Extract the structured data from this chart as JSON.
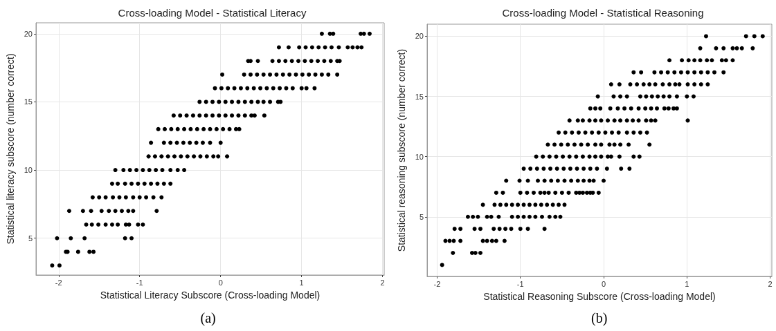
{
  "chart_data": [
    {
      "type": "scatter",
      "title": "Cross-loading Model - Statistical Literacy",
      "xlabel": "Statistical Literacy Subscore (Cross-loading Model)",
      "ylabel": "Statistical literacy subscore (number correct)",
      "annotations": [
        "(a)"
      ],
      "xlim": [
        -2.28,
        2.02
      ],
      "ylim": [
        2.3,
        20.8
      ],
      "xticks": [
        -2,
        -1,
        0,
        1,
        2
      ],
      "yticks": [
        5,
        10,
        15,
        20
      ],
      "grid": true,
      "marker": "circle",
      "series": [
        {
          "color": "#000000",
          "x": [
            -2.08,
            -1.99,
            -1.91,
            -1.89,
            -1.76,
            -1.62,
            -1.57,
            -2.02,
            -1.85,
            -1.68,
            -1.18,
            -1.1,
            -1.66,
            -1.59,
            -1.51,
            -1.42,
            -1.34,
            -1.27,
            -1.17,
            -1.13,
            -1.02,
            -0.96,
            -1.87,
            -1.7,
            -1.6,
            -1.47,
            -1.38,
            -1.3,
            -1.22,
            -1.14,
            -1.08,
            -0.79,
            -1.58,
            -1.5,
            -1.42,
            -1.33,
            -1.25,
            -1.17,
            -1.08,
            -1.0,
            -0.92,
            -0.83,
            -0.73,
            -1.34,
            -1.27,
            -1.18,
            -1.1,
            -1.02,
            -0.94,
            -0.86,
            -0.78,
            -0.7,
            -0.62,
            -1.3,
            -1.2,
            -1.12,
            -1.04,
            -0.96,
            -0.88,
            -0.8,
            -0.72,
            -0.62,
            -0.53,
            -0.45,
            -0.89,
            -0.81,
            -0.73,
            -0.65,
            -0.57,
            -0.49,
            -0.41,
            -0.33,
            -0.25,
            -0.17,
            -0.09,
            -0.03,
            0.08,
            -0.86,
            -0.7,
            -0.62,
            -0.54,
            -0.46,
            -0.38,
            -0.3,
            -0.22,
            -0.13,
            0.0,
            -0.77,
            -0.69,
            -0.61,
            -0.53,
            -0.45,
            -0.37,
            -0.29,
            -0.21,
            -0.13,
            -0.05,
            0.03,
            0.11,
            0.19,
            0.23,
            -0.58,
            -0.5,
            -0.42,
            -0.34,
            -0.26,
            -0.18,
            -0.1,
            -0.02,
            0.06,
            0.14,
            0.22,
            0.3,
            0.38,
            0.42,
            0.54,
            -0.26,
            -0.18,
            -0.1,
            -0.02,
            0.06,
            0.14,
            0.22,
            0.3,
            0.38,
            0.46,
            0.53,
            0.61,
            0.71,
            0.74,
            -0.07,
            0.01,
            0.09,
            0.17,
            0.25,
            0.33,
            0.41,
            0.49,
            0.57,
            0.65,
            0.73,
            0.81,
            0.89,
            1.0,
            1.06,
            1.16,
            0.02,
            0.29,
            0.37,
            0.45,
            0.53,
            0.61,
            0.69,
            0.77,
            0.85,
            0.93,
            1.01,
            1.09,
            1.17,
            1.25,
            1.33,
            1.44,
            0.34,
            0.37,
            0.46,
            0.64,
            0.72,
            0.8,
            0.88,
            0.96,
            1.04,
            1.12,
            1.2,
            1.28,
            1.36,
            1.44,
            1.47,
            0.72,
            0.84,
            0.97,
            1.05,
            1.13,
            1.21,
            1.29,
            1.37,
            1.46,
            1.57,
            1.63,
            1.69,
            1.74,
            1.25,
            1.35,
            1.39,
            1.73,
            1.77,
            1.84
          ],
          "values": [
            3,
            3,
            4,
            4,
            4,
            4,
            4,
            5,
            5,
            5,
            5,
            5,
            6,
            6,
            6,
            6,
            6,
            6,
            6,
            6,
            6,
            6,
            7,
            7,
            7,
            7,
            7,
            7,
            7,
            7,
            7,
            7,
            8,
            8,
            8,
            8,
            8,
            8,
            8,
            8,
            8,
            8,
            8,
            9,
            9,
            9,
            9,
            9,
            9,
            9,
            9,
            9,
            9,
            10,
            10,
            10,
            10,
            10,
            10,
            10,
            10,
            10,
            10,
            10,
            11,
            11,
            11,
            11,
            11,
            11,
            11,
            11,
            11,
            11,
            11,
            11,
            11,
            12,
            12,
            12,
            12,
            12,
            12,
            12,
            12,
            12,
            12,
            13,
            13,
            13,
            13,
            13,
            13,
            13,
            13,
            13,
            13,
            13,
            13,
            13,
            13,
            14,
            14,
            14,
            14,
            14,
            14,
            14,
            14,
            14,
            14,
            14,
            14,
            14,
            14,
            14,
            15,
            15,
            15,
            15,
            15,
            15,
            15,
            15,
            15,
            15,
            15,
            15,
            15,
            15,
            16,
            16,
            16,
            16,
            16,
            16,
            16,
            16,
            16,
            16,
            16,
            16,
            16,
            16,
            16,
            16,
            17,
            17,
            17,
            17,
            17,
            17,
            17,
            17,
            17,
            17,
            17,
            17,
            17,
            17,
            17,
            17,
            18,
            18,
            18,
            18,
            18,
            18,
            18,
            18,
            18,
            18,
            18,
            18,
            18,
            18,
            18,
            19,
            19,
            19,
            19,
            19,
            19,
            19,
            19,
            19,
            19,
            19,
            19,
            19,
            20,
            20,
            20,
            20,
            20,
            20
          ]
        }
      ]
    },
    {
      "type": "scatter",
      "title": "Cross-loading Model - Statistical Reasoning",
      "xlabel": "Statistical Reasoning Subscore (Cross-loading Model)",
      "ylabel": "Statistical reasoning subscore (number correct)",
      "annotations": [
        "(b)"
      ],
      "xlim": [
        -2.12,
        2.02
      ],
      "ylim": [
        0.05,
        21
      ],
      "xticks": [
        -2,
        -1,
        0,
        1,
        2
      ],
      "yticks": [
        5,
        10,
        15,
        20
      ],
      "grid": true,
      "marker": "circle",
      "series": [
        {
          "color": "#000000",
          "x": [
            -1.94,
            -1.81,
            -1.58,
            -1.54,
            -1.48,
            -1.9,
            -1.85,
            -1.8,
            -1.72,
            -1.45,
            -1.4,
            -1.34,
            -1.29,
            -1.19,
            -1.79,
            -1.72,
            -1.55,
            -1.48,
            -1.32,
            -1.25,
            -1.18,
            -1.11,
            -1.0,
            -0.91,
            -0.71,
            -1.63,
            -1.57,
            -1.51,
            -1.4,
            -1.35,
            -1.26,
            -1.1,
            -1.03,
            -0.96,
            -0.89,
            -0.82,
            -0.74,
            -0.65,
            -0.58,
            -0.52,
            -1.45,
            -1.31,
            -1.24,
            -1.17,
            -1.1,
            -1.03,
            -0.96,
            -0.89,
            -0.82,
            -0.75,
            -0.68,
            -0.61,
            -0.54,
            -0.47,
            -1.29,
            -1.21,
            -1.0,
            -0.92,
            -0.84,
            -0.76,
            -0.71,
            -0.66,
            -0.58,
            -0.5,
            -0.42,
            -0.33,
            -0.29,
            -0.25,
            -0.2,
            -0.16,
            -0.13,
            -0.06,
            -1.17,
            -1.01,
            -0.91,
            -0.79,
            -0.71,
            -0.63,
            -0.55,
            -0.47,
            -0.39,
            -0.31,
            -0.24,
            -0.17,
            -0.12,
            0.0,
            -0.96,
            -0.88,
            -0.8,
            -0.72,
            -0.64,
            -0.56,
            -0.48,
            -0.4,
            -0.32,
            -0.24,
            -0.16,
            -0.08,
            0.04,
            0.21,
            0.31,
            -0.81,
            -0.73,
            -0.65,
            -0.57,
            -0.49,
            -0.41,
            -0.33,
            -0.25,
            -0.17,
            -0.1,
            -0.03,
            0.05,
            0.09,
            0.19,
            0.36,
            0.43,
            -0.67,
            -0.59,
            -0.51,
            -0.43,
            -0.35,
            -0.27,
            -0.19,
            -0.1,
            -0.03,
            0.07,
            0.13,
            0.2,
            0.3,
            0.55,
            -0.54,
            -0.46,
            -0.38,
            -0.3,
            -0.22,
            -0.14,
            -0.06,
            0.02,
            0.1,
            0.18,
            0.28,
            0.36,
            0.44,
            0.52,
            -0.41,
            -0.31,
            -0.25,
            -0.17,
            -0.1,
            -0.03,
            0.05,
            0.13,
            0.2,
            0.28,
            0.35,
            0.42,
            0.51,
            0.57,
            0.62,
            1.01,
            -0.16,
            -0.1,
            -0.04,
            0.08,
            0.17,
            0.25,
            0.33,
            0.42,
            0.5,
            0.57,
            0.64,
            0.73,
            0.78,
            0.84,
            0.88,
            -0.07,
            0.12,
            0.2,
            0.28,
            0.44,
            0.51,
            0.58,
            0.65,
            0.72,
            0.79,
            0.88,
            1.0,
            1.08,
            0.09,
            0.19,
            0.32,
            0.4,
            0.48,
            0.55,
            0.62,
            0.71,
            0.79,
            0.86,
            0.91,
            1.01,
            1.09,
            1.17,
            1.25,
            0.36,
            0.45,
            0.61,
            0.69,
            0.77,
            0.85,
            0.93,
            1.01,
            1.09,
            1.17,
            1.25,
            1.33,
            1.44,
            0.79,
            0.94,
            1.02,
            1.09,
            1.16,
            1.24,
            1.3,
            1.42,
            1.47,
            1.55,
            1.16,
            1.35,
            1.44,
            1.55,
            1.6,
            1.66,
            1.79,
            1.23,
            1.71,
            1.81,
            1.91
          ],
          "values": [
            1,
            2,
            2,
            2,
            2,
            3,
            3,
            3,
            3,
            3,
            3,
            3,
            3,
            3,
            4,
            4,
            4,
            4,
            4,
            4,
            4,
            4,
            4,
            4,
            4,
            5,
            5,
            5,
            5,
            5,
            5,
            5,
            5,
            5,
            5,
            5,
            5,
            5,
            5,
            5,
            6,
            6,
            6,
            6,
            6,
            6,
            6,
            6,
            6,
            6,
            6,
            6,
            6,
            6,
            7,
            7,
            7,
            7,
            7,
            7,
            7,
            7,
            7,
            7,
            7,
            7,
            7,
            7,
            7,
            7,
            7,
            7,
            8,
            8,
            8,
            8,
            8,
            8,
            8,
            8,
            8,
            8,
            8,
            8,
            8,
            8,
            9,
            9,
            9,
            9,
            9,
            9,
            9,
            9,
            9,
            9,
            9,
            9,
            9,
            9,
            9,
            10,
            10,
            10,
            10,
            10,
            10,
            10,
            10,
            10,
            10,
            10,
            10,
            10,
            10,
            10,
            10,
            11,
            11,
            11,
            11,
            11,
            11,
            11,
            11,
            11,
            11,
            11,
            11,
            11,
            11,
            12,
            12,
            12,
            12,
            12,
            12,
            12,
            12,
            12,
            12,
            12,
            12,
            12,
            12,
            13,
            13,
            13,
            13,
            13,
            13,
            13,
            13,
            13,
            13,
            13,
            13,
            13,
            13,
            13,
            13,
            14,
            14,
            14,
            14,
            14,
            14,
            14,
            14,
            14,
            14,
            14,
            14,
            14,
            14,
            14,
            15,
            15,
            15,
            15,
            15,
            15,
            15,
            15,
            15,
            15,
            15,
            15,
            15,
            16,
            16,
            16,
            16,
            16,
            16,
            16,
            16,
            16,
            16,
            16,
            16,
            16,
            16,
            16,
            17,
            17,
            17,
            17,
            17,
            17,
            17,
            17,
            17,
            17,
            17,
            17,
            17,
            18,
            18,
            18,
            18,
            18,
            18,
            18,
            18,
            18,
            18,
            19,
            19,
            19,
            19,
            19,
            19,
            19,
            20,
            20,
            20,
            20
          ]
        }
      ]
    }
  ]
}
